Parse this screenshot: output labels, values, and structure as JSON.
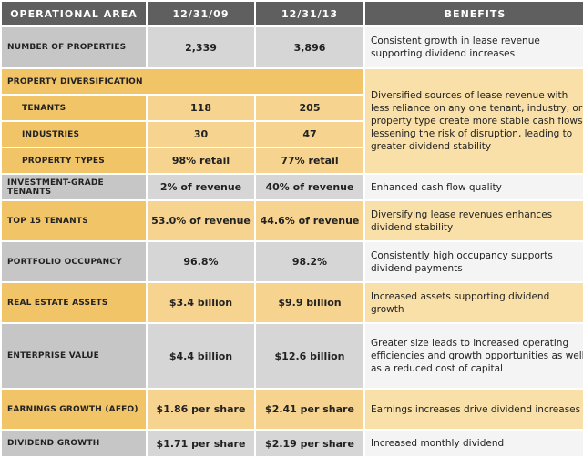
{
  "headers": {
    "area": "OPERATIONAL AREA",
    "col1": "12/31/09",
    "col2": "12/31/13",
    "benefits": "BENEFITS"
  },
  "rows": {
    "properties": {
      "area": "NUMBER OF PROPERTIES",
      "v1": "2,339",
      "v2": "3,896",
      "benefit": "Consistent growth in lease revenue supporting dividend increases"
    },
    "diversification": {
      "area": "PROPERTY DIVERSIFICATION",
      "benefit": "Diversified sources of lease revenue with less reliance on any one tenant, industry, or property type create more stable cash flows lessening the risk of disruption, leading to greater dividend stability"
    },
    "tenants": {
      "area": "TENANTS",
      "v1": "118",
      "v2": "205"
    },
    "industries": {
      "area": "INDUSTRIES",
      "v1": "30",
      "v2": "47"
    },
    "property_types": {
      "area": "PROPERTY TYPES",
      "v1": "98% retail",
      "v2": "77% retail"
    },
    "investment_grade": {
      "area": "INVESTMENT-GRADE TENANTS",
      "v1": "2% of revenue",
      "v2": "40% of revenue",
      "benefit": "Enhanced cash flow quality"
    },
    "top15": {
      "area": "TOP 15 TENANTS",
      "v1": "53.0% of revenue",
      "v2": "44.6% of revenue",
      "benefit": "Diversifying lease revenues enhances dividend stability"
    },
    "occupancy": {
      "area": "PORTFOLIO OCCUPANCY",
      "v1": "96.8%",
      "v2": "98.2%",
      "benefit": "Consistently high occupancy supports dividend payments"
    },
    "real_estate": {
      "area": "REAL ESTATE ASSETS",
      "v1": "$3.4 billion",
      "v2": "$9.9 billion",
      "benefit": "Increased assets supporting dividend growth"
    },
    "enterprise": {
      "area": "ENTERPRISE VALUE",
      "v1": "$4.4 billion",
      "v2": "$12.6 billion",
      "benefit": "Greater size leads to increased operating efficiencies and growth opportunities as well as a reduced cost of capital"
    },
    "earnings": {
      "area": "EARNINGS GROWTH (AFFO)",
      "v1": "$1.86 per share",
      "v2": "$2.41 per share",
      "benefit": "Earnings increases drive dividend increases"
    },
    "dividend": {
      "area": "DIVIDEND GROWTH",
      "v1": "$1.71 per share",
      "v2": "$2.19 per share",
      "benefit": "Increased monthly dividend"
    }
  }
}
